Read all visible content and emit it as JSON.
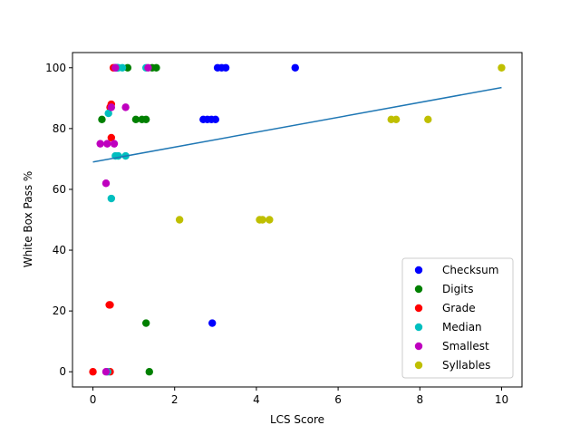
{
  "chart_data": {
    "type": "scatter",
    "title": "",
    "xlabel": "LCS Score",
    "ylabel": "White Box Pass %",
    "xlim": [
      -0.5,
      10.5
    ],
    "ylim": [
      -5,
      105
    ],
    "xticks": [
      0,
      2,
      4,
      6,
      8,
      10
    ],
    "yticks": [
      0,
      20,
      40,
      60,
      80,
      100
    ],
    "grid": false,
    "legend_position": "lower right",
    "series": [
      {
        "name": "Checksum",
        "color": "#0000ff",
        "points": [
          [
            0.55,
            100
          ],
          [
            0.6,
            100
          ],
          [
            3.05,
            100
          ],
          [
            3.15,
            100
          ],
          [
            3.25,
            100
          ],
          [
            4.95,
            100
          ],
          [
            2.7,
            83
          ],
          [
            2.8,
            83
          ],
          [
            2.9,
            83
          ],
          [
            3.0,
            83
          ],
          [
            2.92,
            16
          ]
        ]
      },
      {
        "name": "Digits",
        "color": "#008000",
        "points": [
          [
            0.85,
            100
          ],
          [
            1.45,
            100
          ],
          [
            1.55,
            100
          ],
          [
            0.22,
            83
          ],
          [
            1.05,
            83
          ],
          [
            1.2,
            83
          ],
          [
            1.3,
            83
          ],
          [
            1.3,
            16
          ],
          [
            1.38,
            0
          ]
        ]
      },
      {
        "name": "Grade",
        "color": "#ff0000",
        "points": [
          [
            0.5,
            100
          ],
          [
            0.45,
            88
          ],
          [
            0.42,
            87
          ],
          [
            0.45,
            77
          ],
          [
            0.42,
            22
          ],
          [
            0.4,
            22
          ],
          [
            0.0,
            0
          ],
          [
            0.42,
            0
          ]
        ]
      },
      {
        "name": "Median",
        "color": "#00bfbf",
        "points": [
          [
            0.62,
            100
          ],
          [
            0.72,
            100
          ],
          [
            1.3,
            100
          ],
          [
            0.38,
            85
          ],
          [
            0.55,
            71
          ],
          [
            0.62,
            71
          ],
          [
            0.8,
            71
          ],
          [
            0.45,
            57
          ],
          [
            0.36,
            0
          ]
        ]
      },
      {
        "name": "Smallest",
        "color": "#bf00bf",
        "points": [
          [
            0.55,
            100
          ],
          [
            1.35,
            100
          ],
          [
            0.45,
            87
          ],
          [
            0.8,
            87
          ],
          [
            0.18,
            75
          ],
          [
            0.35,
            75
          ],
          [
            0.52,
            75
          ],
          [
            0.32,
            62
          ],
          [
            0.32,
            0
          ]
        ]
      },
      {
        "name": "Syllables",
        "color": "#bfbf00",
        "points": [
          [
            10.0,
            100
          ],
          [
            7.3,
            83
          ],
          [
            7.42,
            83
          ],
          [
            8.2,
            83
          ],
          [
            2.12,
            50
          ],
          [
            4.08,
            50
          ],
          [
            4.15,
            50
          ],
          [
            4.32,
            50
          ]
        ]
      }
    ],
    "trendline": {
      "color": "#1f77b4",
      "x": [
        0,
        10
      ],
      "y": [
        69,
        93.5
      ]
    }
  }
}
